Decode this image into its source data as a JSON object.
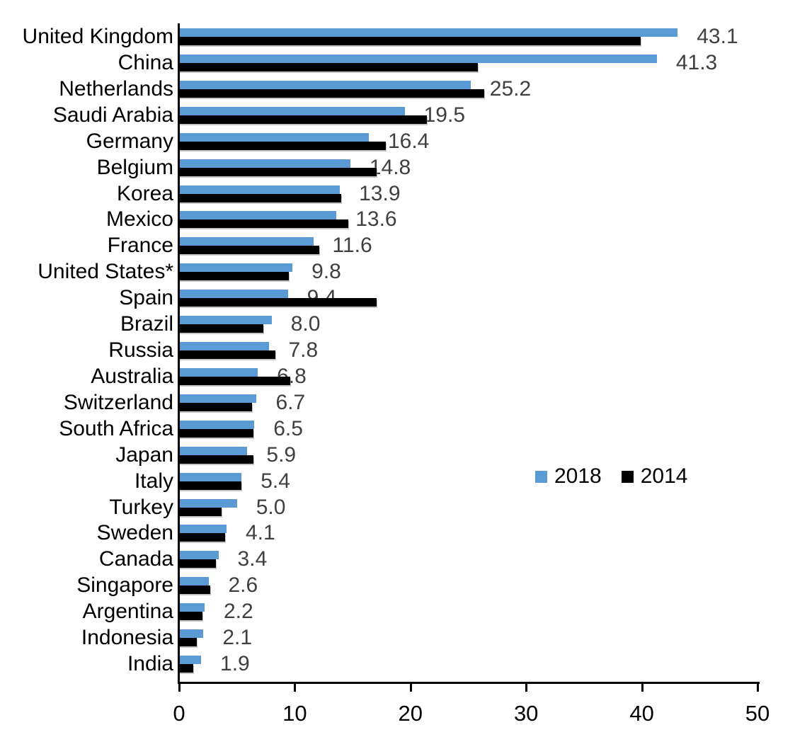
{
  "chart_data": {
    "type": "bar",
    "orientation": "horizontal",
    "title": "",
    "xlabel": "",
    "ylabel": "",
    "xlim": [
      0,
      50
    ],
    "x_ticks": [
      "0",
      "10",
      "20",
      "30",
      "40",
      "50"
    ],
    "grid": false,
    "legend_position": "middle-right",
    "categories": [
      "United Kingdom",
      "China",
      "Netherlands",
      "Saudi Arabia",
      "Germany",
      "Belgium",
      "Korea",
      "Mexico",
      "France",
      "United States*",
      "Spain",
      "Brazil",
      "Russia",
      "Australia",
      "Switzerland",
      "South Africa",
      "Japan",
      "Italy",
      "Turkey",
      "Sweden",
      "Canada",
      "Singapore",
      "Argentina",
      "Indonesia",
      "India"
    ],
    "series": [
      {
        "name": "2018",
        "color": "#5B9BD5",
        "values": [
          43.1,
          41.3,
          25.2,
          19.5,
          16.4,
          14.8,
          13.9,
          13.6,
          11.6,
          9.8,
          9.4,
          8.0,
          7.8,
          6.8,
          6.7,
          6.5,
          5.9,
          5.4,
          5.0,
          4.1,
          3.4,
          2.6,
          2.2,
          2.1,
          1.9
        ],
        "data_labels_visible": true
      },
      {
        "name": "2014",
        "color": "#000000",
        "values": [
          39.9,
          25.8,
          26.4,
          21.4,
          17.9,
          17.1,
          14.0,
          14.6,
          12.1,
          9.5,
          17.1,
          7.3,
          8.3,
          9.6,
          6.3,
          6.4,
          6.4,
          5.4,
          3.7,
          4.0,
          3.2,
          2.7,
          2.0,
          1.5,
          1.2
        ],
        "data_labels_visible": false
      }
    ],
    "value_labels": [
      "43.1",
      "41.3",
      "25.2",
      "19.5",
      "16.4",
      "14.8",
      "13.9",
      "13.6",
      "11.6",
      "9.8",
      "9.4",
      "8.0",
      "7.8",
      "6.8",
      "6.7",
      "6.5",
      "5.9",
      "5.4",
      "5.0",
      "4.1",
      "3.4",
      "2.6",
      "2.2",
      "2.1",
      "1.9"
    ]
  },
  "legend": {
    "items": [
      {
        "label": "2018",
        "color": "#5B9BD5"
      },
      {
        "label": "2014",
        "color": "#000000"
      }
    ]
  },
  "colors": {
    "bar_2018": "#5B9BD5",
    "bar_2014": "#000000",
    "value_label": "#404040",
    "axis": "#000000",
    "background": "#ffffff"
  }
}
